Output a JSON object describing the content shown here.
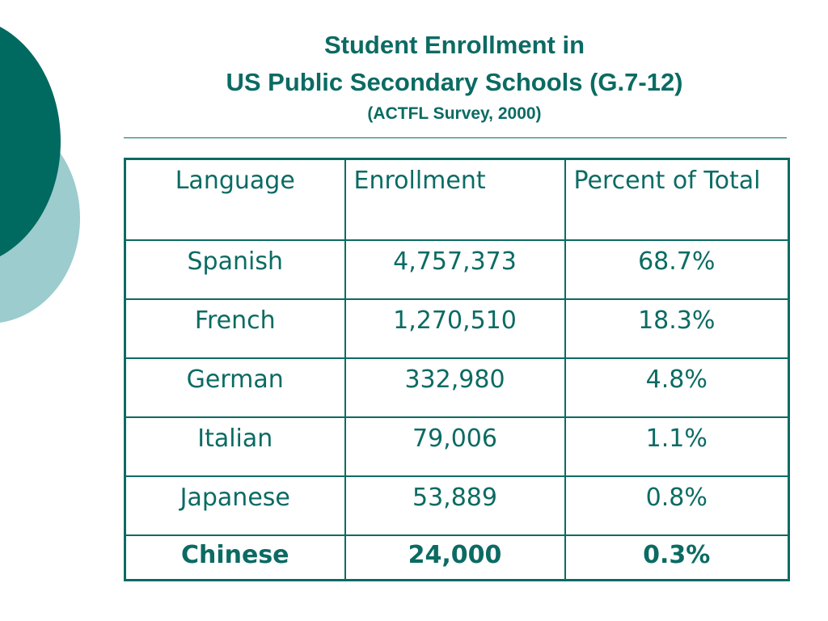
{
  "title": {
    "line1": "Student Enrollment in",
    "line2": "US Public Secondary Schools (G.7-12)",
    "subtitle": "(ACTFL Survey, 2000)"
  },
  "table": {
    "headers": [
      "Language",
      "Enrollment",
      "Percent of Total"
    ],
    "rows": [
      [
        "Spanish",
        "4,757,373",
        "68.7%"
      ],
      [
        "French",
        "1,270,510",
        "18.3%"
      ],
      [
        "German",
        "332,980",
        "4.8%"
      ],
      [
        "Italian",
        "79,006",
        "1.1%"
      ],
      [
        "Japanese",
        "53,889",
        "0.8%"
      ],
      [
        "Chinese",
        "24,000",
        "0.3%"
      ]
    ]
  },
  "colors": {
    "accent": "#0b6b63",
    "circle_dark": "#006960",
    "circle_light": "#9ccccd"
  }
}
